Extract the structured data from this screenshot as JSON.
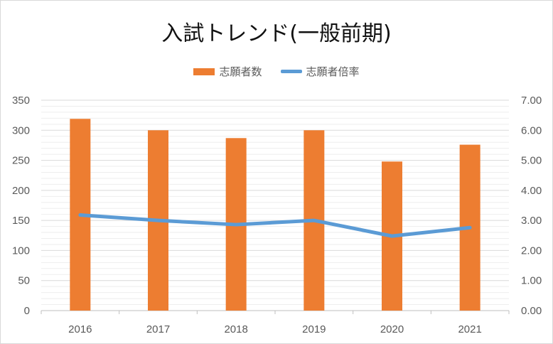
{
  "chart_data": {
    "type": "bar",
    "title": "入試トレンド(一般前期)",
    "categories": [
      "2016",
      "2017",
      "2018",
      "2019",
      "2020",
      "2021"
    ],
    "series": [
      {
        "name": "志願者数",
        "type": "bar",
        "axis": "left",
        "color": "#ed7d31",
        "values": [
          319,
          300,
          287,
          300,
          248,
          276
        ]
      },
      {
        "name": "志願者倍率",
        "type": "line",
        "axis": "right",
        "color": "#5b9bd5",
        "values": [
          3.18,
          3.0,
          2.86,
          3.0,
          2.48,
          2.76
        ]
      }
    ],
    "y_left": {
      "min": 0,
      "max": 350,
      "ticks": [
        "0",
        "50",
        "100",
        "150",
        "200",
        "250",
        "300",
        "350"
      ]
    },
    "y_right": {
      "min": 0,
      "max": 7,
      "ticks": [
        "0.00",
        "1.00",
        "2.00",
        "3.00",
        "4.00",
        "5.00",
        "6.00",
        "7.00"
      ]
    },
    "grid": true,
    "legend_position": "top"
  }
}
